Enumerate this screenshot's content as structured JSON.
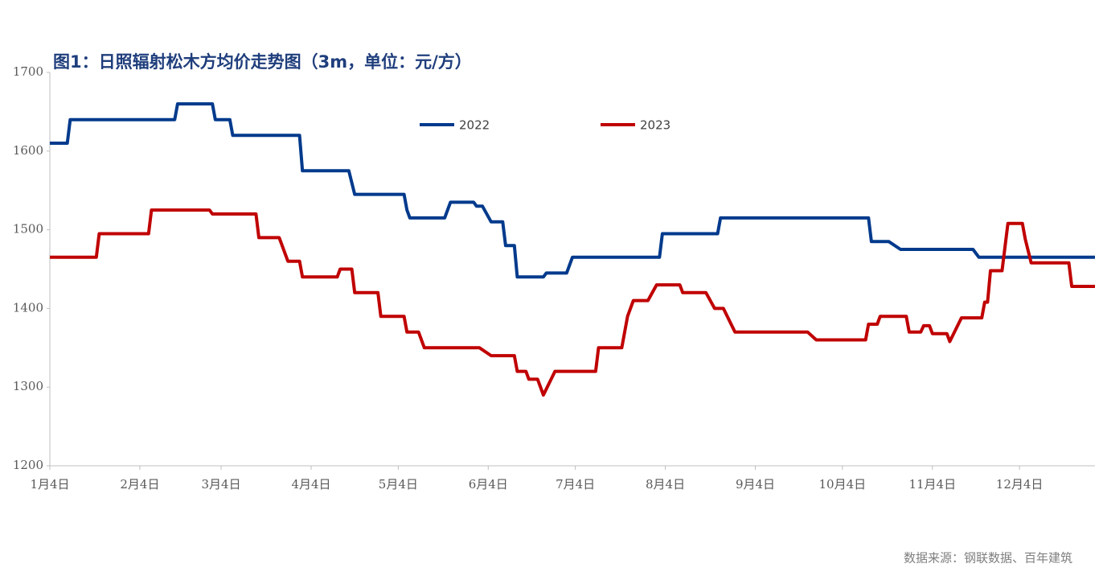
{
  "chart_data": {
    "type": "line",
    "title": "图1：日照辐射松木方均价走势图（3m，单位：元/方）",
    "source": "数据来源：钢联数据、百年建筑",
    "xlim": [
      "01-04",
      "12-30"
    ],
    "xticks": [
      {
        "value": "01-04",
        "label": "1月4日"
      },
      {
        "value": "02-04",
        "label": "2月4日"
      },
      {
        "value": "03-04",
        "label": "3月4日"
      },
      {
        "value": "04-04",
        "label": "4月4日"
      },
      {
        "value": "05-04",
        "label": "5月4日"
      },
      {
        "value": "06-04",
        "label": "6月4日"
      },
      {
        "value": "07-04",
        "label": "7月4日"
      },
      {
        "value": "08-04",
        "label": "8月4日"
      },
      {
        "value": "09-04",
        "label": "9月4日"
      },
      {
        "value": "10-04",
        "label": "10月4日"
      },
      {
        "value": "11-04",
        "label": "11月4日"
      },
      {
        "value": "12-04",
        "label": "12月4日"
      }
    ],
    "ylim": [
      1200,
      1700
    ],
    "yticks": [
      1200,
      1300,
      1400,
      1500,
      1600,
      1700
    ],
    "grid": false,
    "legend": "top",
    "series": [
      {
        "name": "2022",
        "color": "#003a8c",
        "x": [
          "01-04",
          "01-10",
          "01-11",
          "02-16",
          "02-17",
          "03-01",
          "03-02",
          "03-07",
          "03-08",
          "03-31",
          "04-01",
          "04-17",
          "04-19",
          "05-06",
          "05-07",
          "05-08",
          "05-20",
          "05-22",
          "05-30",
          "05-31",
          "06-02",
          "06-05",
          "06-09",
          "06-10",
          "06-13",
          "06-14",
          "06-23",
          "06-24",
          "07-01",
          "07-03",
          "08-02",
          "08-03",
          "08-22",
          "08-23",
          "10-13",
          "10-14",
          "10-20",
          "10-24",
          "11-18",
          "11-20",
          "12-30"
        ],
        "values": [
          1610,
          1610,
          1640,
          1640,
          1660,
          1660,
          1640,
          1640,
          1620,
          1620,
          1575,
          1575,
          1545,
          1545,
          1525,
          1515,
          1515,
          1535,
          1535,
          1530,
          1530,
          1510,
          1510,
          1480,
          1480,
          1440,
          1440,
          1445,
          1445,
          1465,
          1465,
          1495,
          1495,
          1515,
          1515,
          1485,
          1485,
          1475,
          1475,
          1465,
          1465
        ]
      },
      {
        "name": "2023",
        "color": "#c00000",
        "x": [
          "01-04",
          "01-20",
          "01-21",
          "02-07",
          "02-08",
          "02-28",
          "03-01",
          "03-16",
          "03-17",
          "03-24",
          "03-27",
          "03-31",
          "04-01",
          "04-13",
          "04-14",
          "04-18",
          "04-19",
          "04-27",
          "04-28",
          "05-06",
          "05-07",
          "05-11",
          "05-13",
          "06-01",
          "06-05",
          "06-13",
          "06-14",
          "06-17",
          "06-18",
          "06-21",
          "06-23",
          "06-27",
          "07-11",
          "07-12",
          "07-20",
          "07-22",
          "07-24",
          "07-29",
          "08-01",
          "08-09",
          "08-10",
          "08-18",
          "08-21",
          "08-24",
          "08-28",
          "09-22",
          "09-25",
          "10-12",
          "10-13",
          "10-16",
          "10-17",
          "10-26",
          "10-27",
          "10-31",
          "11-01",
          "11-03",
          "11-04",
          "11-09",
          "11-10",
          "11-14",
          "11-21",
          "11-22",
          "11-23",
          "11-24",
          "11-28",
          "11-30",
          "12-05",
          "12-06",
          "12-08",
          "12-21",
          "12-22",
          "12-30"
        ],
        "values": [
          1465,
          1465,
          1495,
          1495,
          1525,
          1525,
          1520,
          1520,
          1490,
          1490,
          1460,
          1460,
          1440,
          1440,
          1450,
          1450,
          1420,
          1420,
          1390,
          1390,
          1370,
          1370,
          1350,
          1350,
          1340,
          1340,
          1320,
          1320,
          1310,
          1310,
          1290,
          1320,
          1320,
          1350,
          1350,
          1390,
          1410,
          1410,
          1430,
          1430,
          1420,
          1420,
          1400,
          1400,
          1370,
          1370,
          1360,
          1360,
          1380,
          1380,
          1390,
          1390,
          1370,
          1370,
          1378,
          1378,
          1368,
          1368,
          1358,
          1388,
          1388,
          1408,
          1408,
          1448,
          1448,
          1508,
          1508,
          1488,
          1458,
          1458,
          1428,
          1428
        ]
      }
    ]
  }
}
